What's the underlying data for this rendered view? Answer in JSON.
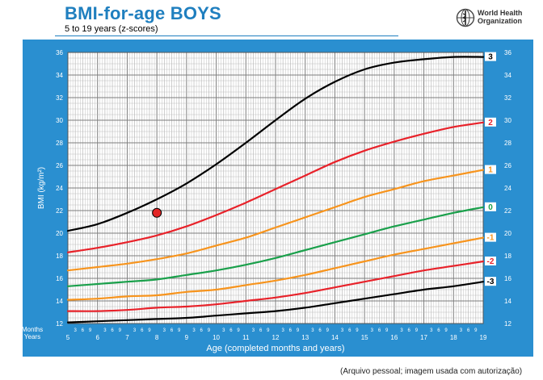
{
  "header": {
    "title": "BMI-for-age  BOYS",
    "subtitle": "5 to 19 years (z-scores)",
    "org_line1": "World Health",
    "org_line2": "Organization",
    "logo_icon": "who-emblem-icon"
  },
  "footnote": "(Arquivo pessoal; imagem usada com autorização)",
  "colors": {
    "panel": "#2a8fd0",
    "plot_bg": "#ffffff",
    "grid_minor": "#b9b9b9",
    "grid_major": "#7d7d7d",
    "z3": "#000000",
    "z2": "#e8222a",
    "z1": "#f7941d",
    "z0": "#1aa04b",
    "marker": "#e32626"
  },
  "chart_data": {
    "type": "line",
    "title": "BMI-for-age  BOYS",
    "subtitle": "5 to 19 years (z-scores)",
    "xlabel": "Age (completed months and years)",
    "ylabel": "BMI (kg/m²)",
    "xlim": [
      5,
      19
    ],
    "ylim": [
      12,
      36
    ],
    "y_ticks": [
      12,
      14,
      16,
      18,
      20,
      22,
      24,
      26,
      28,
      30,
      32,
      34,
      36
    ],
    "x_ticks": [
      5,
      6,
      7,
      8,
      9,
      10,
      11,
      12,
      13,
      14,
      15,
      16,
      17,
      18,
      19
    ],
    "x_minor_labels": [
      "3",
      "6",
      "9"
    ],
    "x_row_labels": [
      "Months",
      "Years"
    ],
    "x": [
      5,
      6,
      7,
      8,
      9,
      10,
      11,
      12,
      13,
      14,
      15,
      16,
      17,
      18,
      19
    ],
    "series": [
      {
        "name": "3",
        "color": "#000000",
        "values": [
          20.2,
          20.8,
          21.8,
          23.0,
          24.4,
          26.1,
          28.0,
          30.0,
          31.9,
          33.4,
          34.5,
          35.1,
          35.4,
          35.6,
          35.6
        ]
      },
      {
        "name": "2",
        "color": "#e8222a",
        "values": [
          18.3,
          18.7,
          19.2,
          19.8,
          20.6,
          21.6,
          22.7,
          23.9,
          25.1,
          26.3,
          27.3,
          28.1,
          28.8,
          29.4,
          29.8
        ]
      },
      {
        "name": "1",
        "color": "#f7941d",
        "values": [
          16.7,
          17.0,
          17.3,
          17.7,
          18.2,
          18.9,
          19.6,
          20.5,
          21.4,
          22.3,
          23.2,
          23.9,
          24.6,
          25.1,
          25.6
        ]
      },
      {
        "name": "0",
        "color": "#1aa04b",
        "values": [
          15.3,
          15.5,
          15.7,
          15.9,
          16.3,
          16.7,
          17.2,
          17.8,
          18.5,
          19.2,
          19.9,
          20.6,
          21.2,
          21.8,
          22.3
        ]
      },
      {
        "name": "-1",
        "color": "#f7941d",
        "values": [
          14.1,
          14.2,
          14.4,
          14.5,
          14.8,
          15.0,
          15.4,
          15.8,
          16.3,
          16.9,
          17.5,
          18.1,
          18.6,
          19.1,
          19.6
        ]
      },
      {
        "name": "-2",
        "color": "#e8222a",
        "values": [
          13.1,
          13.1,
          13.2,
          13.4,
          13.5,
          13.7,
          14.0,
          14.3,
          14.7,
          15.2,
          15.7,
          16.2,
          16.7,
          17.1,
          17.5
        ]
      },
      {
        "name": "-3",
        "color": "#000000",
        "values": [
          12.1,
          12.2,
          12.3,
          12.4,
          12.5,
          12.7,
          12.9,
          13.1,
          13.4,
          13.8,
          14.2,
          14.6,
          15.0,
          15.3,
          15.7
        ]
      }
    ],
    "points": [
      {
        "x": 8.0,
        "y": 21.8
      }
    ],
    "grid": true
  }
}
